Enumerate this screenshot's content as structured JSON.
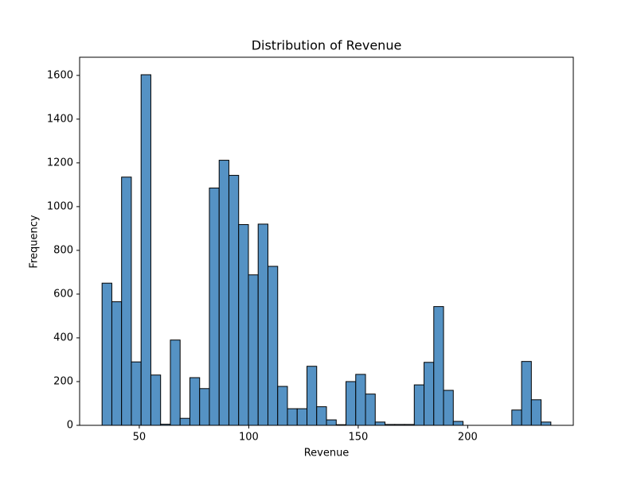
{
  "chart_data": {
    "type": "histogram",
    "title": "Distribution of Revenue",
    "x_label": "Revenue",
    "y_label": "Frequency",
    "bins": [
      33,
      37.46,
      41.91,
      46.37,
      50.83,
      55.28,
      59.74,
      64.2,
      68.65,
      73.11,
      77.57,
      82.02,
      86.48,
      90.93,
      95.39,
      99.85,
      104.3,
      108.76,
      113.22,
      117.67,
      122.13,
      126.59,
      131.04,
      135.5,
      139.96,
      144.41,
      148.87,
      153.33,
      157.78,
      162.24,
      166.7,
      171.15,
      175.61,
      180.07,
      184.52,
      188.98,
      193.43,
      197.89,
      202.35,
      206.8,
      211.26,
      215.72,
      220.17,
      224.63,
      229.09,
      233.54,
      238
    ],
    "values": [
      650,
      565,
      1135,
      290,
      1603,
      230,
      5,
      390,
      32,
      218,
      168,
      1085,
      1212,
      1143,
      918,
      688,
      920,
      727,
      178,
      76,
      76,
      270,
      85,
      25,
      3,
      200,
      233,
      143,
      15,
      4,
      4,
      4,
      185,
      288,
      543,
      160,
      18,
      0,
      0,
      0,
      0,
      0,
      70,
      292,
      117,
      15
    ],
    "color": "#5592c4",
    "xlim": [
      22.75,
      248.25
    ],
    "xticks": [
      50,
      100,
      150,
      200
    ],
    "ylim": [
      0,
      1683
    ],
    "yticks": [
      0,
      200,
      400,
      600,
      800,
      1000,
      1200,
      1400,
      1600
    ],
    "grid": false
  }
}
